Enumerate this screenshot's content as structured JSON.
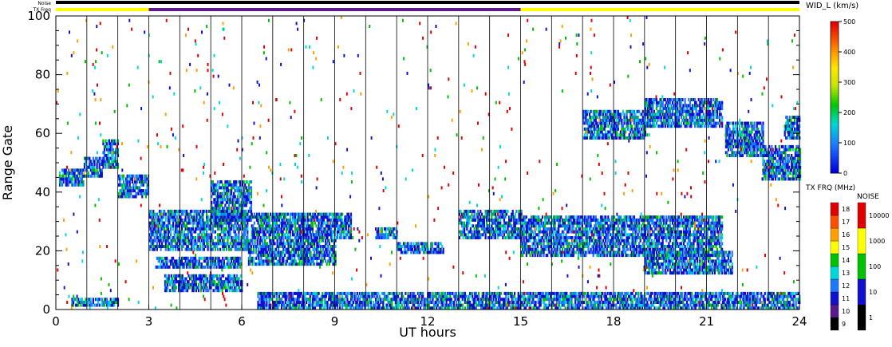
{
  "chart_data": {
    "type": "heatmap",
    "title": "",
    "xlabel": "UT hours",
    "ylabel": "Range Gate",
    "xlim": [
      0,
      24
    ],
    "ylim": [
      0,
      100
    ],
    "x_ticks": [
      "0",
      "3",
      "6",
      "9",
      "12",
      "15",
      "18",
      "21",
      "24"
    ],
    "y_ticks": [
      "0",
      "20",
      "40",
      "60",
      "80",
      "100"
    ],
    "grid": "vertical lines every 1 UT hour",
    "status_bars": {
      "noise_label": "Noise",
      "txfreq_label": "TX Freq",
      "noise_color": "#000000",
      "txfreq_segments": [
        {
          "start": 0,
          "end": 3,
          "color": "#ffff00"
        },
        {
          "start": 3,
          "end": 15,
          "color": "#5a1a8c"
        },
        {
          "start": 15,
          "end": 24,
          "color": "#ffff00"
        }
      ]
    },
    "parameter_colorbar": {
      "label": "WID_L (km/s)",
      "ticks": [
        "0",
        "100",
        "200",
        "300",
        "400",
        "500"
      ],
      "range": [
        0,
        500
      ]
    },
    "txfreq_legend": {
      "label": "TX FRQ (MHz)",
      "levels": [
        "9",
        "10",
        "11",
        "12",
        "13",
        "14",
        "15",
        "16",
        "17",
        "18"
      ],
      "colors": [
        "#000000",
        "#5a1a8c",
        "#1010d0",
        "#1e78ff",
        "#00d8d8",
        "#00c000",
        "#ffff00",
        "#ffa000",
        "#ff5000",
        "#e00000"
      ]
    },
    "noise_legend": {
      "label": "NOISE",
      "levels": [
        "1",
        "10",
        "100",
        "1000",
        "10000"
      ],
      "colors": [
        "#000000",
        "#1010d0",
        "#00c000",
        "#ffff00",
        "#e00000"
      ]
    },
    "backscatter_bands": [
      {
        "t0": 0.1,
        "t1": 0.9,
        "g0": 42,
        "g1": 48
      },
      {
        "t0": 0.9,
        "t1": 1.5,
        "g0": 45,
        "g1": 52
      },
      {
        "t0": 1.5,
        "t1": 2.0,
        "g0": 48,
        "g1": 58
      },
      {
        "t0": 2.0,
        "t1": 3.0,
        "g0": 38,
        "g1": 46
      },
      {
        "t0": 3.0,
        "t1": 6.2,
        "g0": 20,
        "g1": 34
      },
      {
        "t0": 5.0,
        "t1": 6.3,
        "g0": 30,
        "g1": 44
      },
      {
        "t0": 3.2,
        "t1": 6.0,
        "g0": 14,
        "g1": 18
      },
      {
        "t0": 3.5,
        "t1": 6.0,
        "g0": 6,
        "g1": 12
      },
      {
        "t0": 6.2,
        "t1": 9.0,
        "g0": 15,
        "g1": 24
      },
      {
        "t0": 6.3,
        "t1": 9.5,
        "g0": 24,
        "g1": 33
      },
      {
        "t0": 10.3,
        "t1": 11.0,
        "g0": 24,
        "g1": 28
      },
      {
        "t0": 11.0,
        "t1": 12.5,
        "g0": 19,
        "g1": 23
      },
      {
        "t0": 13.0,
        "t1": 15.0,
        "g0": 24,
        "g1": 34
      },
      {
        "t0": 15.0,
        "t1": 21.5,
        "g0": 18,
        "g1": 32
      },
      {
        "t0": 19.0,
        "t1": 21.8,
        "g0": 12,
        "g1": 20
      },
      {
        "t0": 17.0,
        "t1": 19.0,
        "g0": 58,
        "g1": 68
      },
      {
        "t0": 19.0,
        "t1": 21.5,
        "g0": 62,
        "g1": 72
      },
      {
        "t0": 21.6,
        "t1": 22.8,
        "g0": 52,
        "g1": 64
      },
      {
        "t0": 22.8,
        "t1": 24.0,
        "g0": 44,
        "g1": 56
      },
      {
        "t0": 23.5,
        "t1": 24.0,
        "g0": 58,
        "g1": 66
      },
      {
        "t0": 0.5,
        "t1": 2.0,
        "g0": 1,
        "g1": 4
      },
      {
        "t0": 6.5,
        "t1": 24.0,
        "g0": 0,
        "g1": 6
      }
    ]
  }
}
